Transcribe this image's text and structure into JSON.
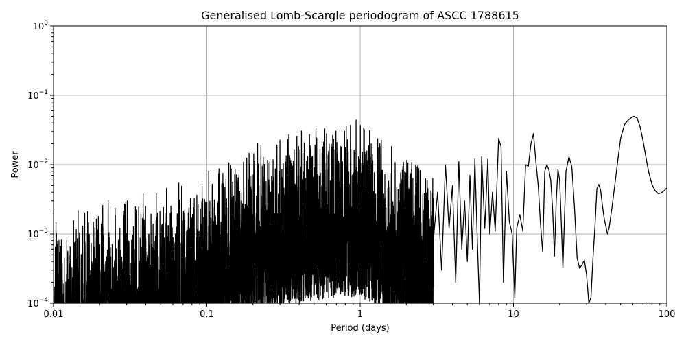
{
  "chart_data": {
    "type": "line",
    "title": "Generalised Lomb-Scargle periodogram of ASCC 1788615",
    "xlabel": "Period (days)",
    "ylabel": "Power",
    "xscale": "log",
    "yscale": "log",
    "xlim": [
      0.01,
      100
    ],
    "ylim": [
      0.0001,
      1
    ],
    "grid": true,
    "x_ticks": [
      {
        "value": 0.01,
        "label": "0.01"
      },
      {
        "value": 0.1,
        "label": "0.1"
      },
      {
        "value": 1,
        "label": "1"
      },
      {
        "value": 10,
        "label": "10"
      },
      {
        "value": 100,
        "label": "100"
      }
    ],
    "y_ticks": [
      {
        "value": 0.0001,
        "base": "10",
        "exp": "−4"
      },
      {
        "value": 0.001,
        "base": "10",
        "exp": "−3"
      },
      {
        "value": 0.01,
        "base": "10",
        "exp": "−2"
      },
      {
        "value": 0.1,
        "base": "10",
        "exp": "−1"
      },
      {
        "value": 1,
        "base": "10",
        "exp": "0"
      }
    ],
    "line_color": "#000000",
    "series": [
      {
        "x": [
          3.0,
          3.2,
          3.4,
          3.6,
          3.8,
          4.0,
          4.2,
          4.4,
          4.6,
          4.8,
          5.0,
          5.2,
          5.4,
          5.6,
          5.8,
          6.0,
          6.2,
          6.5,
          6.8,
          7.0,
          7.3,
          7.6,
          8.0,
          8.3,
          8.6,
          9.0,
          9.4,
          9.8,
          10.2,
          10.5,
          11.0,
          11.5,
          12.0,
          12.5,
          13.0,
          13.5,
          14.0,
          14.5,
          15.0,
          15.5,
          16.0,
          16.5,
          17.0,
          17.5,
          18.0,
          18.5,
          19.0,
          19.5,
          20.0,
          20.5,
          21.0,
          22.0,
          23.0,
          24.0,
          25.0,
          26.0,
          27.0,
          28.0,
          29.0,
          30.0,
          31.0,
          32.0,
          33.0,
          34.0,
          35.0,
          36.0,
          37.0,
          38.0,
          39.0,
          40.0,
          41.0,
          42.0,
          44.0,
          46.0,
          48.0,
          50.0,
          53.0,
          56.0,
          59.0,
          61.0,
          64.0,
          67.0,
          70.0,
          73.0,
          76.0,
          80.0,
          84.0,
          88.0,
          92.0,
          96.0,
          100.0
        ],
        "y": [
          0.0008,
          0.004,
          0.0003,
          0.01,
          0.0012,
          0.005,
          0.0002,
          0.011,
          0.0006,
          0.003,
          0.0004,
          0.007,
          0.0006,
          0.012,
          0.0009,
          0.0001,
          0.013,
          0.0012,
          0.012,
          0.001,
          0.004,
          0.0011,
          0.024,
          0.018,
          0.0002,
          0.008,
          0.0015,
          0.001,
          0.00012,
          0.0012,
          0.0019,
          0.0011,
          0.01,
          0.0095,
          0.02,
          0.028,
          0.011,
          0.005,
          0.0014,
          0.00055,
          0.008,
          0.01,
          0.0085,
          0.006,
          0.0023,
          0.00048,
          0.003,
          0.0085,
          0.006,
          0.0015,
          0.00032,
          0.008,
          0.013,
          0.0095,
          0.0024,
          0.00045,
          0.00032,
          0.00036,
          0.00042,
          0.00025,
          0.0001,
          0.00012,
          0.00045,
          0.0013,
          0.0045,
          0.0052,
          0.0043,
          0.0026,
          0.0017,
          0.0013,
          0.001,
          0.0012,
          0.0025,
          0.0055,
          0.012,
          0.024,
          0.038,
          0.044,
          0.048,
          0.05,
          0.047,
          0.035,
          0.022,
          0.013,
          0.008,
          0.0052,
          0.0042,
          0.0038,
          0.0039,
          0.0042,
          0.0046
        ]
      }
    ]
  }
}
